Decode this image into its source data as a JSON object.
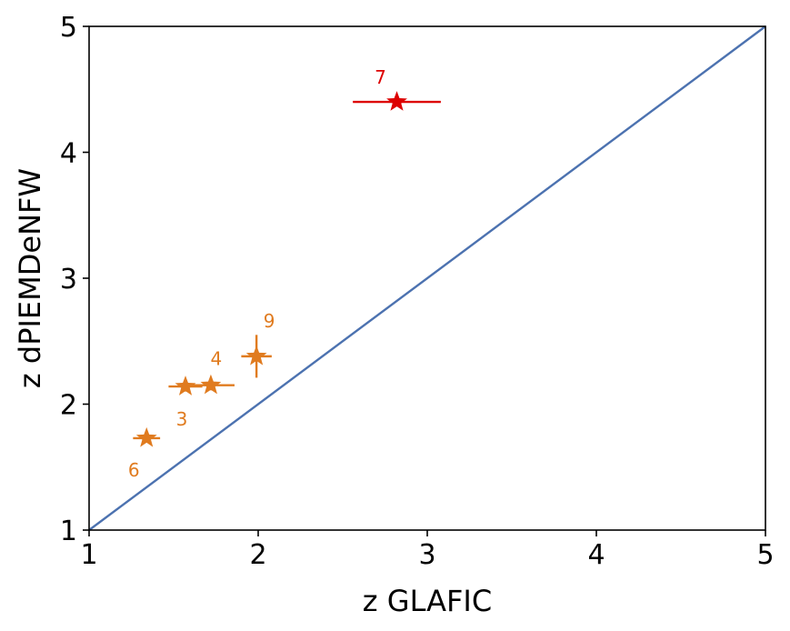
{
  "chart_data": {
    "type": "scatter",
    "xlabel": "z GLAFIC",
    "ylabel": "z dPIEMDeNFW",
    "xlim": [
      1,
      5
    ],
    "ylim": [
      1,
      5
    ],
    "xticks": [
      "1",
      "2",
      "3",
      "4",
      "5"
    ],
    "yticks": [
      "1",
      "2",
      "3",
      "4",
      "5"
    ],
    "grid": false,
    "reference_line": {
      "x": [
        1,
        5
      ],
      "y": [
        1,
        5
      ],
      "color": "#4c72b0"
    },
    "points": [
      {
        "label": "7",
        "x": 2.82,
        "y": 4.4,
        "xerr": [
          0.26,
          0.26
        ],
        "yerr": [
          0.03,
          0.03
        ],
        "color": "#dd0000"
      },
      {
        "label": "9",
        "x": 1.99,
        "y": 2.38,
        "xerr": [
          0.09,
          0.09
        ],
        "yerr": [
          0.17,
          0.17
        ],
        "color": "#e07b1f"
      },
      {
        "label": "4",
        "x": 1.72,
        "y": 2.15,
        "xerr": [
          0.14,
          0.14
        ],
        "yerr": [
          0.04,
          0.04
        ],
        "color": "#e07b1f"
      },
      {
        "label": "3",
        "x": 1.57,
        "y": 2.14,
        "xerr": [
          0.1,
          0.1
        ],
        "yerr": [
          0.04,
          0.04
        ],
        "color": "#e07b1f"
      },
      {
        "label": "6",
        "x": 1.34,
        "y": 1.73,
        "xerr": [
          0.08,
          0.08
        ],
        "yerr": [
          0.03,
          0.03
        ],
        "color": "#e07b1f"
      }
    ]
  }
}
